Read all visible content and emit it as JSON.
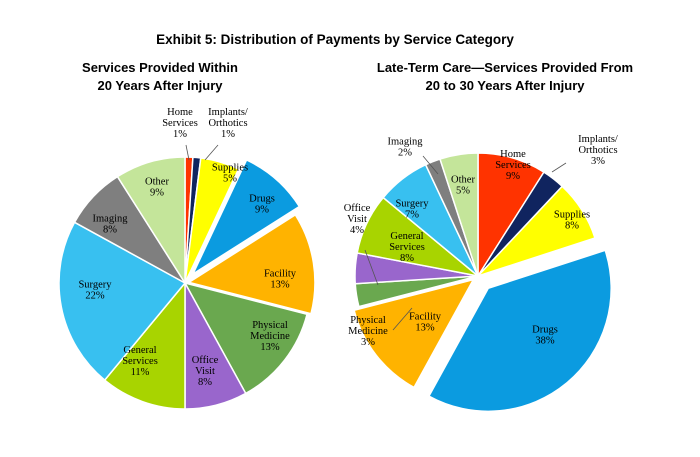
{
  "exhibit_title": "Exhibit 5: Distribution of Payments by Service Category",
  "chart_data": [
    {
      "type": "pie",
      "title_lines": [
        "Services Provided Within",
        "20 Years After Injury"
      ],
      "slices": [
        {
          "label": [
            "Home",
            "Services"
          ],
          "value": 1,
          "value_label": "1%",
          "color": "#ff3300"
        },
        {
          "label": [
            "Implants/",
            "Orthotics"
          ],
          "value": 1,
          "value_label": "1%",
          "color": "#10245f"
        },
        {
          "label": [
            "Supplies"
          ],
          "value": 5,
          "value_label": "5%",
          "color": "#ffff00"
        },
        {
          "label": [
            "Drugs"
          ],
          "value": 9,
          "value_label": "9%",
          "color": "#0b9be0"
        },
        {
          "label": [
            "Facility"
          ],
          "value": 13,
          "value_label": "13%",
          "color": "#ffb300"
        },
        {
          "label": [
            "Physical",
            "Medicine"
          ],
          "value": 13,
          "value_label": "13%",
          "color": "#6aa84f"
        },
        {
          "label": [
            "Office",
            "Visit"
          ],
          "value": 8,
          "value_label": "8%",
          "color": "#9966cc"
        },
        {
          "label": [
            "General",
            "Services"
          ],
          "value": 11,
          "value_label": "11%",
          "color": "#a8d400"
        },
        {
          "label": [
            "Surgery"
          ],
          "value": 22,
          "value_label": "22%",
          "color": "#38c0f0"
        },
        {
          "label": [
            "Imaging"
          ],
          "value": 8,
          "value_label": "8%",
          "color": "#7f7f7f"
        },
        {
          "label": [
            "Other"
          ],
          "value": 9,
          "value_label": "9%",
          "color": "#c4e59a"
        }
      ]
    },
    {
      "type": "pie",
      "title_lines": [
        "Late-Term Care—Services Provided From",
        "20 to 30 Years After Injury"
      ],
      "slices": [
        {
          "label": [
            "Home",
            "Services"
          ],
          "value": 9,
          "value_label": "9%",
          "color": "#ff3300"
        },
        {
          "label": [
            "Implants/",
            "Orthotics"
          ],
          "value": 3,
          "value_label": "3%",
          "color": "#10245f"
        },
        {
          "label": [
            "Supplies"
          ],
          "value": 8,
          "value_label": "8%",
          "color": "#ffff00"
        },
        {
          "label": [
            "Drugs"
          ],
          "value": 38,
          "value_label": "38%",
          "color": "#0b9be0"
        },
        {
          "label": [
            "Facility"
          ],
          "value": 13,
          "value_label": "13%",
          "color": "#ffb300"
        },
        {
          "label": [
            "Physical",
            "Medicine"
          ],
          "value": 3,
          "value_label": "3%",
          "color": "#6aa84f"
        },
        {
          "label": [
            "Office",
            "Visit"
          ],
          "value": 4,
          "value_label": "4%",
          "color": "#9966cc"
        },
        {
          "label": [
            "General",
            "Services"
          ],
          "value": 8,
          "value_label": "8%",
          "color": "#a8d400"
        },
        {
          "label": [
            "Surgery"
          ],
          "value": 7,
          "value_label": "7%",
          "color": "#38c0f0"
        },
        {
          "label": [
            "Imaging"
          ],
          "value": 2,
          "value_label": "2%",
          "color": "#7f7f7f"
        },
        {
          "label": [
            "Other"
          ],
          "value": 5,
          "value_label": "5%",
          "color": "#c4e59a"
        }
      ]
    }
  ]
}
